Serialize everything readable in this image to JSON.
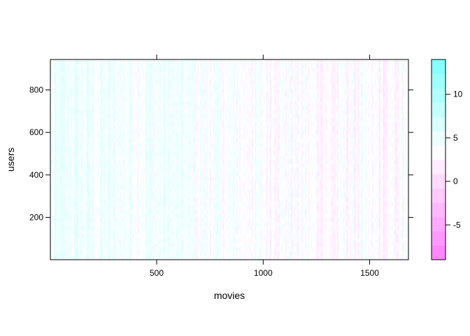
{
  "chart_data": {
    "type": "heatmap",
    "title": "",
    "xlabel": "movies",
    "ylabel": "users",
    "xlim": [
      1,
      1682
    ],
    "ylim": [
      1,
      943
    ],
    "x_ticks": [
      500,
      1000,
      1500
    ],
    "y_ticks": [
      200,
      400,
      600,
      800
    ],
    "colorbar": {
      "range": [
        -9,
        14
      ],
      "ticks": [
        -5,
        0,
        5,
        10
      ],
      "low_color": "#ff80ff",
      "mid_color": "#ffffff",
      "high_color": "#80ffff",
      "mid_value": 3.5
    },
    "column_profile": [
      {
        "x": 1,
        "value": 4.5
      },
      {
        "x": 100,
        "value": 4.8
      },
      {
        "x": 200,
        "value": 4.6
      },
      {
        "x": 300,
        "value": 4.3
      },
      {
        "x": 450,
        "value": 4.6
      },
      {
        "x": 520,
        "value": 4.4
      },
      {
        "x": 600,
        "value": 4.2
      },
      {
        "x": 700,
        "value": 3.9
      },
      {
        "x": 800,
        "value": 3.8
      },
      {
        "x": 900,
        "value": 3.7
      },
      {
        "x": 1000,
        "value": 3.6
      },
      {
        "x": 1100,
        "value": 3.5
      },
      {
        "x": 1200,
        "value": 3.3
      },
      {
        "x": 1290,
        "value": 3.1
      },
      {
        "x": 1330,
        "value": 2.4
      },
      {
        "x": 1380,
        "value": 3.2
      },
      {
        "x": 1450,
        "value": 3.1
      },
      {
        "x": 1520,
        "value": 3.0
      },
      {
        "x": 1570,
        "value": 2.2
      },
      {
        "x": 1620,
        "value": 3.0
      },
      {
        "x": 1682,
        "value": 3.2
      }
    ]
  }
}
